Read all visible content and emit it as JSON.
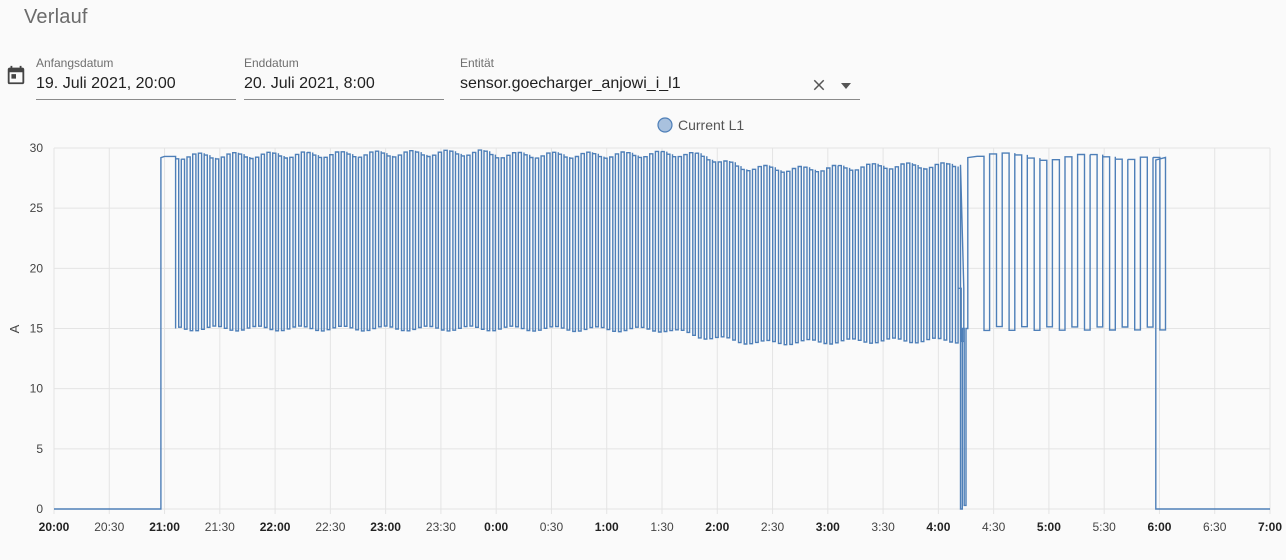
{
  "page": {
    "title": "Verlauf"
  },
  "icons": {
    "calendar": "calendar-icon",
    "clear": "close-icon",
    "dropdown": "caret-down-icon"
  },
  "filters": {
    "start": {
      "label": "Anfangsdatum",
      "value": "19. Juli 2021, 20:00"
    },
    "end": {
      "label": "Enddatum",
      "value": "20. Juli 2021, 8:00"
    },
    "entity": {
      "label": "Entität",
      "value": "sensor.goecharger_anjowi_i_l1"
    }
  },
  "colors": {
    "series": "#4e7fb8",
    "legend_fill": "#a9c1de",
    "grid": "#e4e4e4",
    "axis_text": "#444444"
  },
  "chart_data": {
    "type": "line",
    "title": "",
    "xlabel": "",
    "ylabel": "A",
    "legend": {
      "position": "top-center",
      "entries": [
        "Current L1"
      ]
    },
    "grid": true,
    "xlim": [
      "20:00",
      "7:00"
    ],
    "ylim": [
      0,
      30
    ],
    "y_ticks": [
      "0",
      "5",
      "10",
      "15",
      "20",
      "25",
      "30"
    ],
    "x_ticks": [
      {
        "label": "20:00",
        "bold": true
      },
      {
        "label": "20:30",
        "bold": false
      },
      {
        "label": "21:00",
        "bold": true
      },
      {
        "label": "21:30",
        "bold": false
      },
      {
        "label": "22:00",
        "bold": true
      },
      {
        "label": "22:30",
        "bold": false
      },
      {
        "label": "23:00",
        "bold": true
      },
      {
        "label": "23:30",
        "bold": false
      },
      {
        "label": "0:00",
        "bold": true
      },
      {
        "label": "0:30",
        "bold": false
      },
      {
        "label": "1:00",
        "bold": true
      },
      {
        "label": "1:30",
        "bold": false
      },
      {
        "label": "2:00",
        "bold": true
      },
      {
        "label": "2:30",
        "bold": false
      },
      {
        "label": "3:00",
        "bold": true
      },
      {
        "label": "3:30",
        "bold": false
      },
      {
        "label": "4:00",
        "bold": true
      },
      {
        "label": "4:30",
        "bold": false
      },
      {
        "label": "5:00",
        "bold": true
      },
      {
        "label": "5:30",
        "bold": false
      },
      {
        "label": "6:00",
        "bold": true
      },
      {
        "label": "6:30",
        "bold": false
      },
      {
        "label": "7:00",
        "bold": true
      }
    ],
    "series": [
      {
        "name": "Current L1",
        "x": [
          "20:00",
          "20:58",
          "20:58",
          "21:00",
          "21:06",
          "21:06",
          "21:06",
          "21:58",
          "22:00",
          "23:00",
          "23:50",
          "0:00",
          "1:00",
          "1:30",
          "1:40",
          "1:55",
          "2:10",
          "2:40",
          "3:00",
          "3:30",
          "4:00",
          "4:10",
          "4:12",
          "4:12",
          "4:13",
          "4:13",
          "4:15",
          "4:15",
          "4:15",
          "4:20",
          "4:20",
          "5:00",
          "5:50",
          "5:58",
          "5:58",
          "6:00",
          "7:00"
        ],
        "y": [
          0,
          0,
          29.2,
          29.3,
          29.3,
          15,
          29.3,
          29.4,
          29.4,
          29.5,
          29.6,
          29.4,
          29.4,
          29.5,
          29.5,
          29.2,
          28.4,
          28.2,
          28.3,
          28.5,
          28.5,
          28.6,
          0,
          29.2,
          29.2,
          0.3,
          0.3,
          29.3,
          29.3,
          29.4,
          29.4,
          29.2,
          29.3,
          29.0,
          0,
          0,
          0
        ],
        "oscillation": {
          "start": "21:06",
          "end": "5:58",
          "high": 29.3,
          "low_by_time": [
            {
              "x": "21:06",
              "low": 15.0
            },
            {
              "x": "0:00",
              "low": 15.0
            },
            {
              "x": "1:30",
              "low": 14.9
            },
            {
              "x": "1:55",
              "low": 14.2
            },
            {
              "x": "2:20",
              "low": 13.8
            },
            {
              "x": "3:30",
              "low": 14.0
            },
            {
              "x": "4:10",
              "low": 14.0
            },
            {
              "x": "4:20",
              "low": 15.0
            },
            {
              "x": "5:58",
              "low": 15.0
            }
          ]
        }
      }
    ]
  }
}
